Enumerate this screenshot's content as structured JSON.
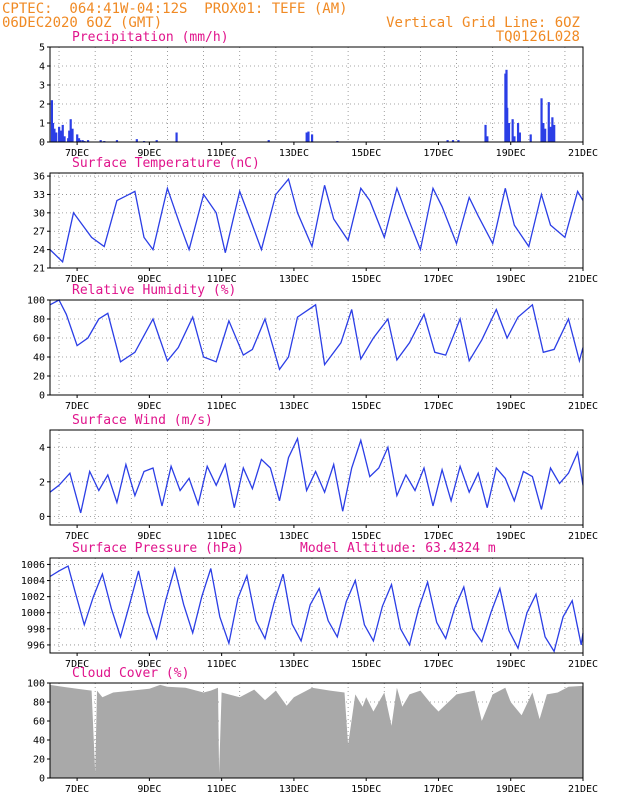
{
  "header": {
    "line1_left": "CPTEC:  064:41W-04:12S  PROX01: TEFE (AM)",
    "line2_left": "06DEC2020 6OZ (GMT)",
    "line1_right": "Vertical Grid Line: 6OZ",
    "line2_right": "TQ0126L028"
  },
  "colors": {
    "header": "#f08a24",
    "title": "#e0148c",
    "series": "#2b3ee6",
    "cloud": "#a9a9a9",
    "grid": "#888888"
  },
  "x_axis": {
    "labels": [
      "7DEC",
      "9DEC",
      "11DEC",
      "13DEC",
      "15DEC",
      "17DEC",
      "19DEC",
      "21DEC"
    ],
    "day_range": [
      6.25,
      21.0
    ]
  },
  "chart_data": [
    {
      "type": "bar",
      "title": "Precipitation (mm/h)",
      "ylim": [
        0,
        5
      ],
      "yticks": [
        0,
        1,
        2,
        3,
        4,
        5
      ],
      "x": [
        6.3,
        6.33,
        6.37,
        6.42,
        6.5,
        6.55,
        6.6,
        6.65,
        6.75,
        6.78,
        6.82,
        6.87,
        7.0,
        7.05,
        7.08,
        7.15,
        7.2,
        7.3,
        7.65,
        7.75,
        8.1,
        8.65,
        8.85,
        9.2,
        9.75,
        12.3,
        13.35,
        13.4,
        13.5,
        14.2,
        17.25,
        17.4,
        17.55,
        18.3,
        18.35,
        18.85,
        18.88,
        18.9,
        18.95,
        19.05,
        19.1,
        19.2,
        19.25,
        19.55,
        19.85,
        19.9,
        19.95,
        20.05,
        20.1,
        20.15,
        20.2
      ],
      "values": [
        2.2,
        1.0,
        0.7,
        0.5,
        0.8,
        0.6,
        0.9,
        0.3,
        0.2,
        0.6,
        1.2,
        0.7,
        0.4,
        0.2,
        0.1,
        0.1,
        0.05,
        0.1,
        0.1,
        0.05,
        0.1,
        0.15,
        0.05,
        0.1,
        0.5,
        0.1,
        0.5,
        0.55,
        0.4,
        0.05,
        0.1,
        0.1,
        0.1,
        0.9,
        0.3,
        3.6,
        3.8,
        1.8,
        1.0,
        1.2,
        0.3,
        1.0,
        0.5,
        0.4,
        2.3,
        1.0,
        0.7,
        2.1,
        0.8,
        1.3,
        0.9
      ]
    },
    {
      "type": "line",
      "title": "Surface Temperature (nC)",
      "ylim": [
        21,
        36.5
      ],
      "yticks": [
        21,
        24,
        27,
        30,
        33,
        36
      ],
      "x": [
        6.25,
        6.6,
        6.9,
        7.4,
        7.75,
        8.1,
        8.6,
        8.85,
        9.1,
        9.5,
        9.85,
        10.1,
        10.5,
        10.85,
        11.1,
        11.5,
        11.85,
        12.1,
        12.5,
        12.85,
        13.1,
        13.5,
        13.85,
        14.1,
        14.5,
        14.85,
        15.1,
        15.5,
        15.85,
        16.1,
        16.5,
        16.85,
        17.1,
        17.5,
        17.85,
        18.1,
        18.5,
        18.85,
        19.1,
        19.5,
        19.85,
        20.1,
        20.5,
        20.85,
        21.0
      ],
      "values": [
        24.0,
        22.0,
        30.0,
        26.0,
        24.5,
        32.0,
        33.5,
        26.0,
        24.0,
        34.0,
        28.0,
        24.0,
        33.0,
        30.0,
        23.5,
        33.5,
        28.0,
        24.0,
        33.0,
        35.5,
        30.0,
        24.5,
        34.5,
        29.0,
        25.5,
        34.0,
        32.0,
        26.0,
        34.0,
        30.0,
        24.0,
        34.0,
        31.0,
        25.0,
        32.5,
        29.5,
        25.0,
        34.0,
        28.0,
        24.5,
        33.0,
        28.0,
        26.0,
        33.5,
        32.0
      ]
    },
    {
      "type": "line",
      "title": "Relative Humidity (%)",
      "ylim": [
        0,
        100
      ],
      "yticks": [
        0,
        20,
        40,
        60,
        80,
        100
      ],
      "x": [
        6.25,
        6.5,
        6.7,
        7.0,
        7.3,
        7.6,
        7.85,
        8.2,
        8.6,
        9.1,
        9.5,
        9.8,
        10.2,
        10.5,
        10.85,
        11.2,
        11.6,
        11.85,
        12.2,
        12.6,
        12.85,
        13.1,
        13.6,
        13.85,
        14.3,
        14.6,
        14.85,
        15.2,
        15.6,
        15.85,
        16.2,
        16.6,
        16.9,
        17.2,
        17.6,
        17.85,
        18.2,
        18.6,
        18.9,
        19.2,
        19.6,
        19.9,
        20.2,
        20.6,
        20.9,
        21.0
      ],
      "values": [
        95,
        100,
        85,
        52,
        60,
        80,
        86,
        35,
        45,
        80,
        36,
        50,
        82,
        40,
        35,
        78,
        42,
        48,
        80,
        27,
        40,
        82,
        95,
        32,
        55,
        90,
        38,
        60,
        80,
        37,
        55,
        85,
        45,
        42,
        80,
        36,
        58,
        90,
        60,
        82,
        95,
        45,
        48,
        80,
        36,
        50
      ]
    },
    {
      "type": "line",
      "title": "Surface Wind (m/s)",
      "ylim": [
        -0.5,
        5
      ],
      "yticks": [
        0,
        2,
        4
      ],
      "x": [
        6.25,
        6.5,
        6.8,
        7.1,
        7.35,
        7.6,
        7.85,
        8.1,
        8.35,
        8.6,
        8.85,
        9.1,
        9.35,
        9.6,
        9.85,
        10.1,
        10.35,
        10.6,
        10.85,
        11.1,
        11.35,
        11.6,
        11.85,
        12.1,
        12.35,
        12.6,
        12.85,
        13.1,
        13.35,
        13.6,
        13.85,
        14.1,
        14.35,
        14.6,
        14.85,
        15.1,
        15.35,
        15.6,
        15.85,
        16.1,
        16.35,
        16.6,
        16.85,
        17.1,
        17.35,
        17.6,
        17.85,
        18.1,
        18.35,
        18.6,
        18.85,
        19.1,
        19.35,
        19.6,
        19.85,
        20.1,
        20.35,
        20.6,
        20.85,
        21.0
      ],
      "values": [
        1.4,
        1.8,
        2.5,
        0.2,
        2.6,
        1.5,
        2.4,
        0.8,
        3.0,
        1.2,
        2.6,
        2.8,
        0.6,
        2.9,
        1.5,
        2.2,
        0.7,
        2.9,
        1.8,
        3.0,
        0.5,
        2.8,
        1.6,
        3.3,
        2.8,
        0.9,
        3.4,
        4.5,
        1.5,
        2.6,
        1.4,
        3.0,
        0.3,
        2.8,
        4.4,
        2.3,
        2.8,
        4.0,
        1.2,
        2.4,
        1.5,
        2.8,
        0.6,
        2.7,
        0.9,
        2.9,
        1.4,
        2.5,
        0.5,
        2.8,
        2.2,
        0.9,
        2.6,
        2.3,
        0.4,
        2.8,
        1.9,
        2.5,
        3.7,
        1.8
      ]
    },
    {
      "type": "line",
      "title": "Surface Pressure (hPa)",
      "subtitle": "Model Altitude: 63.4324 m",
      "ylim": [
        995,
        1006.8
      ],
      "yticks": [
        996,
        998,
        1000,
        1002,
        1004,
        1006
      ],
      "x": [
        6.25,
        6.5,
        6.75,
        6.95,
        7.2,
        7.45,
        7.7,
        7.95,
        8.2,
        8.45,
        8.7,
        8.95,
        9.2,
        9.45,
        9.7,
        9.95,
        10.2,
        10.45,
        10.7,
        10.95,
        11.2,
        11.45,
        11.7,
        11.95,
        12.2,
        12.45,
        12.7,
        12.95,
        13.2,
        13.45,
        13.7,
        13.95,
        14.2,
        14.45,
        14.7,
        14.95,
        15.2,
        15.45,
        15.7,
        15.95,
        16.2,
        16.45,
        16.7,
        16.95,
        17.2,
        17.45,
        17.7,
        17.95,
        18.2,
        18.45,
        18.7,
        18.95,
        19.2,
        19.45,
        19.7,
        19.95,
        20.2,
        20.45,
        20.7,
        20.95,
        21.0
      ],
      "values": [
        1004.5,
        1005.2,
        1005.8,
        1002.5,
        998.5,
        1002.0,
        1004.8,
        1000.5,
        997.0,
        1001.0,
        1005.2,
        1000.0,
        996.8,
        1001.5,
        1005.5,
        1001.0,
        997.5,
        1002.0,
        1005.5,
        999.5,
        996.2,
        1001.8,
        1004.6,
        999.0,
        996.8,
        1001.2,
        1004.8,
        998.6,
        996.5,
        1001.0,
        1003.0,
        999.0,
        997.0,
        1001.4,
        1004.0,
        998.5,
        996.5,
        1000.8,
        1003.5,
        998.0,
        996.0,
        1000.5,
        1003.8,
        998.8,
        996.8,
        1000.6,
        1003.2,
        998.0,
        996.4,
        1000.0,
        1003.0,
        997.8,
        995.6,
        1000.0,
        1002.3,
        997.0,
        995.2,
        999.5,
        1001.5,
        996.0,
        997.5
      ]
    },
    {
      "type": "area",
      "title": "Cloud Cover (%)",
      "ylim": [
        0,
        100
      ],
      "yticks": [
        0,
        20,
        40,
        60,
        80,
        100
      ],
      "x": [
        6.25,
        6.6,
        7.0,
        7.4,
        7.5,
        7.55,
        7.7,
        8.0,
        8.5,
        9.0,
        9.3,
        9.5,
        10.0,
        10.5,
        10.7,
        10.9,
        10.93,
        11.0,
        11.5,
        11.9,
        12.2,
        12.5,
        12.8,
        13.0,
        13.5,
        14.0,
        14.4,
        14.5,
        14.7,
        14.9,
        15.0,
        15.2,
        15.5,
        15.7,
        15.85,
        16.0,
        16.2,
        16.5,
        16.8,
        17.0,
        17.5,
        18.0,
        18.2,
        18.5,
        18.85,
        19.0,
        19.3,
        19.6,
        19.8,
        20.0,
        20.3,
        20.6,
        21.0
      ],
      "values": [
        98,
        96,
        94,
        92,
        5,
        92,
        85,
        90,
        92,
        94,
        98,
        96,
        95,
        90,
        92,
        95,
        5,
        90,
        85,
        93,
        82,
        92,
        76,
        85,
        95,
        92,
        90,
        35,
        88,
        75,
        85,
        70,
        90,
        55,
        95,
        75,
        88,
        92,
        78,
        70,
        88,
        92,
        60,
        88,
        95,
        80,
        66,
        90,
        62,
        88,
        90,
        96,
        97
      ]
    }
  ]
}
